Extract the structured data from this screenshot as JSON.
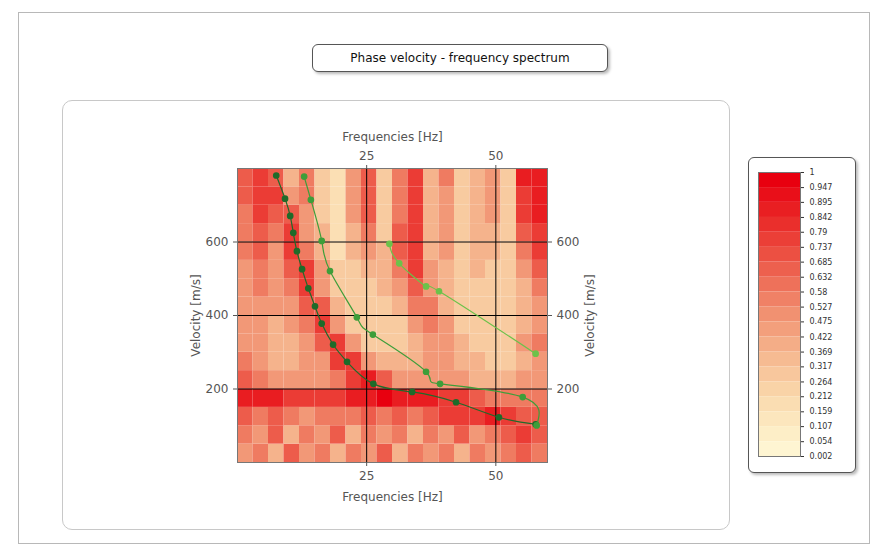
{
  "chart_data": {
    "type": "heatmap",
    "title": "Phase velocity - frequency spectrum",
    "xlabel": "Frequencies [Hz]",
    "ylabel": "Velocity [m/s]",
    "xlim": [
      0,
      60
    ],
    "ylim": [
      0,
      800
    ],
    "xticks": [
      25,
      50
    ],
    "yticks": [
      200,
      400,
      600
    ],
    "grid": true,
    "heatmap": {
      "xbins": [
        0,
        3,
        6,
        9,
        12,
        15,
        18,
        21,
        24,
        27,
        30,
        33,
        36,
        39,
        42,
        45,
        48,
        51,
        54,
        57,
        60
      ],
      "ybins": [
        0,
        50,
        100,
        150,
        200,
        250,
        300,
        350,
        400,
        450,
        500,
        550,
        600,
        650,
        700,
        750,
        800
      ],
      "values": [
        [
          0.5,
          0.6,
          0.4,
          0.7,
          0.5,
          0.6,
          0.4,
          0.6,
          0.5,
          0.7,
          0.4,
          0.6,
          0.5,
          0.6,
          0.4,
          0.6,
          0.5,
          0.6,
          0.7,
          0.6
        ],
        [
          0.6,
          0.5,
          0.7,
          0.4,
          0.6,
          0.5,
          0.7,
          0.4,
          0.6,
          0.5,
          0.6,
          0.4,
          0.6,
          0.5,
          0.7,
          0.5,
          0.6,
          0.7,
          0.8,
          0.7
        ],
        [
          0.7,
          0.6,
          0.7,
          0.6,
          0.5,
          0.6,
          0.6,
          0.6,
          0.7,
          0.6,
          0.7,
          0.6,
          0.7,
          0.8,
          0.8,
          0.8,
          0.9,
          0.8,
          0.7,
          0.7
        ],
        [
          0.9,
          0.9,
          0.9,
          0.8,
          0.8,
          0.8,
          0.8,
          0.9,
          0.9,
          1,
          0.9,
          0.9,
          0.9,
          0.8,
          0.8,
          0.7,
          0.6,
          0.6,
          0.6,
          0.6
        ],
        [
          0.7,
          0.6,
          0.5,
          0.5,
          0.5,
          0.5,
          0.6,
          0.8,
          0.9,
          0.7,
          0.5,
          0.5,
          0.5,
          0.5,
          0.5,
          0.4,
          0.4,
          0.4,
          0.5,
          0.5
        ],
        [
          0.6,
          0.5,
          0.4,
          0.4,
          0.5,
          0.5,
          0.8,
          0.8,
          0.5,
          0.4,
          0.4,
          0.4,
          0.5,
          0.5,
          0.4,
          0.4,
          0.3,
          0.3,
          0.4,
          0.5
        ],
        [
          0.5,
          0.5,
          0.4,
          0.4,
          0.5,
          0.7,
          0.8,
          0.5,
          0.3,
          0.3,
          0.3,
          0.4,
          0.5,
          0.5,
          0.4,
          0.3,
          0.3,
          0.3,
          0.5,
          0.6
        ],
        [
          0.5,
          0.5,
          0.4,
          0.5,
          0.6,
          0.8,
          0.5,
          0.3,
          0.3,
          0.3,
          0.3,
          0.5,
          0.6,
          0.5,
          0.3,
          0.3,
          0.3,
          0.3,
          0.4,
          0.5
        ],
        [
          0.5,
          0.5,
          0.5,
          0.5,
          0.7,
          0.7,
          0.4,
          0.3,
          0.3,
          0.3,
          0.4,
          0.6,
          0.6,
          0.4,
          0.3,
          0.3,
          0.3,
          0.3,
          0.4,
          0.5
        ],
        [
          0.5,
          0.6,
          0.5,
          0.6,
          0.8,
          0.5,
          0.3,
          0.3,
          0.3,
          0.4,
          0.5,
          0.7,
          0.5,
          0.4,
          0.3,
          0.3,
          0.3,
          0.3,
          0.4,
          0.6
        ],
        [
          0.5,
          0.6,
          0.5,
          0.7,
          0.8,
          0.5,
          0.3,
          0.3,
          0.4,
          0.4,
          0.6,
          0.8,
          0.5,
          0.4,
          0.3,
          0.4,
          0.3,
          0.3,
          0.5,
          0.7
        ],
        [
          0.6,
          0.7,
          0.5,
          0.8,
          0.6,
          0.4,
          0.2,
          0.4,
          0.5,
          0.4,
          0.7,
          0.8,
          0.4,
          0.5,
          0.3,
          0.4,
          0.4,
          0.3,
          0.6,
          0.8
        ],
        [
          0.6,
          0.7,
          0.6,
          0.8,
          0.5,
          0.4,
          0.2,
          0.4,
          0.6,
          0.3,
          0.7,
          0.8,
          0.4,
          0.5,
          0.3,
          0.4,
          0.4,
          0.3,
          0.7,
          0.8
        ],
        [
          0.6,
          0.8,
          0.7,
          0.7,
          0.5,
          0.3,
          0.2,
          0.5,
          0.7,
          0.3,
          0.6,
          0.8,
          0.4,
          0.5,
          0.3,
          0.4,
          0.5,
          0.3,
          0.8,
          0.9
        ],
        [
          0.7,
          0.8,
          0.8,
          0.5,
          0.6,
          0.3,
          0.2,
          0.5,
          0.7,
          0.3,
          0.6,
          0.8,
          0.4,
          0.5,
          0.3,
          0.4,
          0.5,
          0.3,
          0.8,
          0.9
        ],
        [
          0.7,
          0.8,
          0.7,
          0.4,
          0.6,
          0.3,
          0.2,
          0.5,
          0.7,
          0.3,
          0.6,
          0.8,
          0.4,
          0.6,
          0.3,
          0.4,
          0.5,
          0.3,
          0.9,
          0.9
        ]
      ]
    },
    "colorbar": {
      "range": [
        0.002,
        1
      ],
      "ticks": [
        1,
        0.947,
        0.895,
        0.842,
        0.79,
        0.737,
        0.685,
        0.632,
        0.58,
        0.527,
        0.475,
        0.422,
        0.369,
        0.317,
        0.264,
        0.212,
        0.159,
        0.107,
        0.054,
        0.002
      ]
    },
    "series": [
      {
        "type": "line",
        "color": "#1f6b2a",
        "marker": "circle",
        "line_style": "solid",
        "x": [
          7.5,
          9.2,
          10.2,
          10.8,
          11.5,
          12.5,
          13.7,
          15.0,
          16.3,
          18.5,
          21.2,
          26.3,
          33.8,
          42.3,
          50.6,
          57.7
        ],
        "values": [
          781,
          718,
          671,
          625,
          575,
          526,
          474,
          425,
          378,
          321,
          274,
          214,
          192,
          164,
          123,
          104
        ]
      },
      {
        "type": "line",
        "color": "#3e9e3a",
        "marker": "circle",
        "line_style": "solid",
        "x": [
          12.9,
          14.2,
          16.3,
          17.9,
          23.1,
          26.2,
          36.5,
          39.2,
          55.2,
          57.9
        ],
        "values": [
          778,
          715,
          603,
          521,
          395,
          348,
          247,
          214,
          178,
          101
        ]
      },
      {
        "type": "line",
        "color": "#6cc24a",
        "marker": "circle",
        "line_style": "solid",
        "x": [
          29.4,
          31.3,
          36.5,
          39.0,
          57.7
        ],
        "values": [
          595,
          542,
          479,
          466,
          296
        ]
      }
    ]
  }
}
